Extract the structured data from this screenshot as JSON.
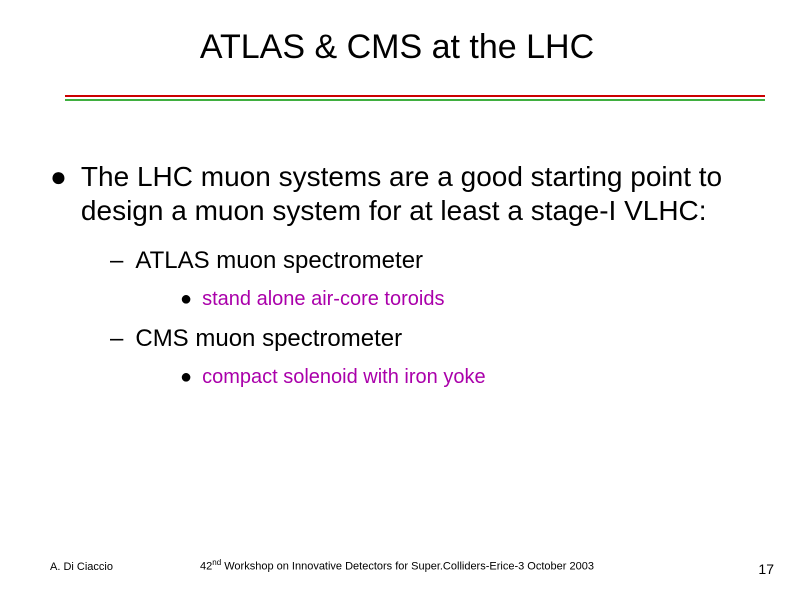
{
  "title": "ATLAS  & CMS at the LHC",
  "underline": {
    "red_color": "#cc0000",
    "green_color": "#3faf3f"
  },
  "content": {
    "l1": "The LHC muon systems are a good starting point to design a muon system for at least a stage-I VLHC:",
    "sub": [
      {
        "l2": "ATLAS muon spectrometer",
        "l3": "stand alone air-core toroids",
        "l3_color": "#aa00aa"
      },
      {
        "l2": "CMS muon spectrometer",
        "l3": "compact solenoid with iron yoke",
        "l3_color": "#aa00aa"
      }
    ]
  },
  "footer": {
    "author": "A. Di Ciaccio",
    "venue_pre": "42",
    "venue_sup": "nd",
    "venue_post": " Workshop on Innovative Detectors for Super.Colliders-Erice-3 October 2003",
    "page": "17"
  }
}
